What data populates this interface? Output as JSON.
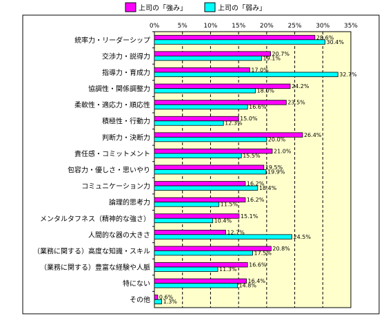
{
  "chart_data": {
    "type": "bar",
    "orientation": "horizontal",
    "categories": [
      "統率力・リーダーシップ",
      "交渉力・説得力",
      "指導力・育成力",
      "協調性・関係調整力",
      "柔軟性・適応力・順応性",
      "積極性・行動力",
      "判断力・決断力",
      "責任感・コミットメント",
      "包容力・優しさ・思いやり",
      "コミュニケーション力",
      "論理的思考力",
      "メンタルタフネス（精神的な強さ）",
      "人間的な器の大きさ",
      "（業務に関する）高度な知識・スキル",
      "（業務に関する）豊富な経験や人脈",
      "特にない",
      "その他"
    ],
    "series": [
      {
        "name": "上司の「強み」",
        "color": "#ff00ff",
        "values": [
          28.6,
          20.7,
          17.0,
          24.2,
          23.5,
          15.0,
          26.4,
          21.0,
          19.5,
          16.2,
          16.2,
          15.1,
          12.7,
          20.8,
          16.6,
          16.4,
          0.6
        ],
        "labels": [
          "28.6%",
          "20.7%",
          "17.0%",
          "24.2%",
          "23.5%",
          "15.0%",
          "26.4%",
          "21.0%",
          "19.5%",
          "16.2%",
          "16.2%",
          "15.1%",
          "12.7%",
          "20.8%",
          "16.6%",
          "16.4%",
          "0.6%"
        ]
      },
      {
        "name": "上司の「弱み」",
        "color": "#00ffff",
        "values": [
          30.4,
          19.1,
          32.7,
          18.0,
          16.6,
          12.3,
          20.0,
          15.5,
          19.9,
          18.4,
          11.5,
          10.4,
          24.5,
          17.5,
          11.3,
          14.8,
          1.3
        ],
        "labels": [
          "30.4%",
          "19.1%",
          "32.7%",
          "18.0%",
          "16.6%",
          "12.3%",
          "20.0%",
          "15.5%",
          "19.9%",
          "18.4%",
          "11.5%",
          "10.4%",
          "24.5%",
          "17.5%",
          "11.3%",
          "14.8%",
          "1.3%"
        ]
      }
    ],
    "xticks": [
      "0%",
      "5%",
      "10%",
      "15%",
      "20%",
      "25%",
      "30%",
      "35%"
    ],
    "xlim": [
      0,
      35
    ],
    "grid": true,
    "legend": "top",
    "title": "",
    "xlabel": "",
    "ylabel": ""
  }
}
